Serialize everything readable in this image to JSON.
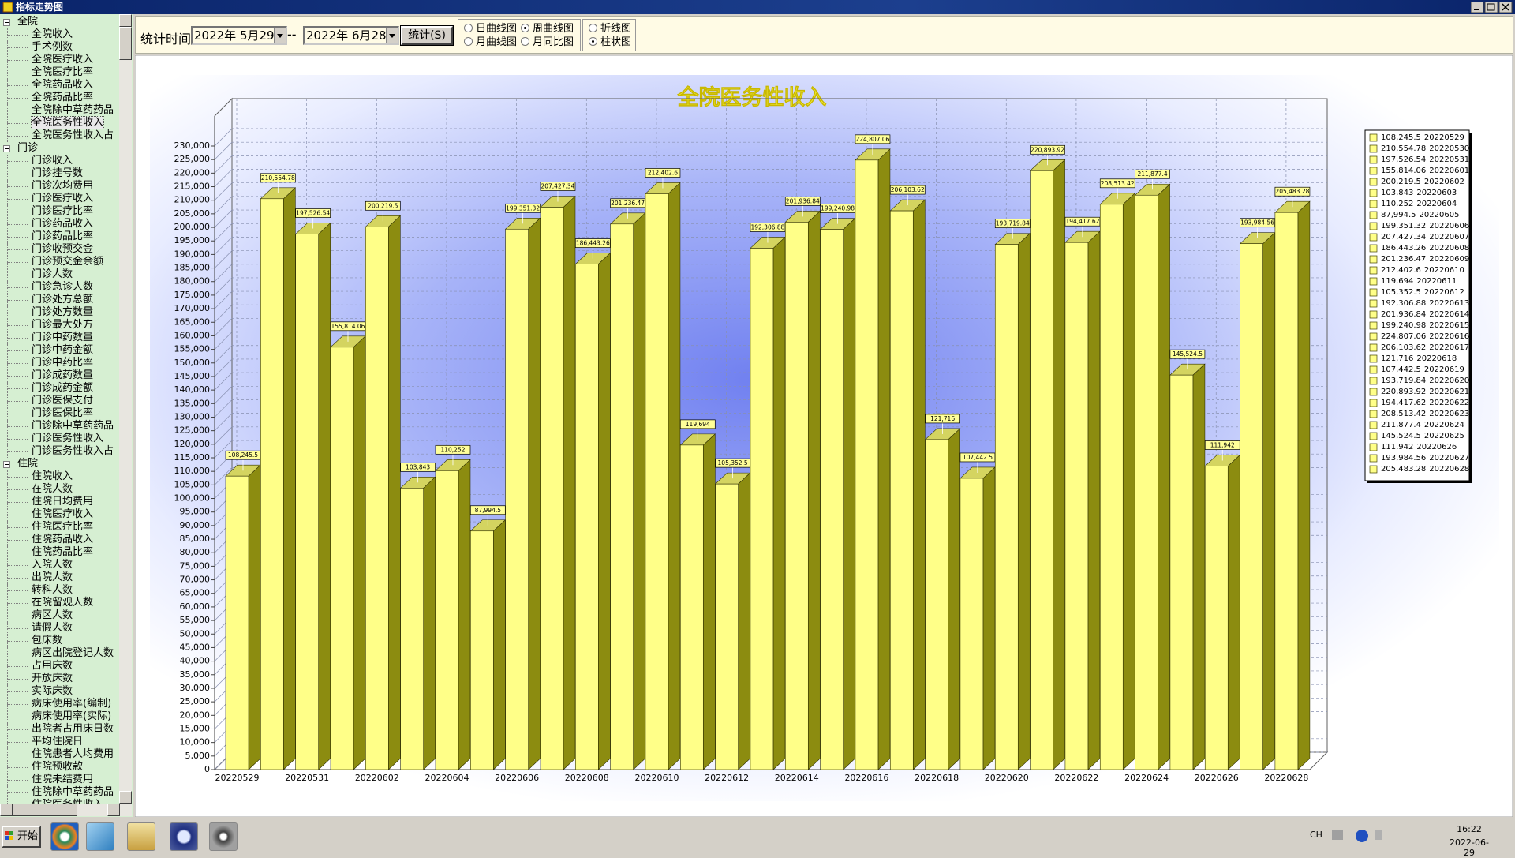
{
  "window": {
    "title": "指标走势图"
  },
  "sidebar": {
    "groups": [
      {
        "label": "全院",
        "selected_index": 7,
        "items": [
          "全院收入",
          "手术例数",
          "全院医疗收入",
          "全院医疗比率",
          "全院药品收入",
          "全院药品比率",
          "全院除中草药药品",
          "全院医务性收入",
          "全院医务性收入占"
        ]
      },
      {
        "label": "门诊",
        "items": [
          "门诊收入",
          "门诊挂号数",
          "门诊次均费用",
          "门诊医疗收入",
          "门诊医疗比率",
          "门诊药品收入",
          "门诊药品比率",
          "门诊收预交金",
          "门诊预交金余额",
          "门诊人数",
          "门诊急诊人数",
          "门诊处方总额",
          "门诊处方数量",
          "门诊最大处方",
          "门诊中药数量",
          "门诊中药金额",
          "门诊中药比率",
          "门诊成药数量",
          "门诊成药金额",
          "门诊医保支付",
          "门诊医保比率",
          "门诊除中草药药品",
          "门诊医务性收入",
          "门诊医务性收入占"
        ]
      },
      {
        "label": "住院",
        "items": [
          "住院收入",
          "在院人数",
          "住院日均费用",
          "住院医疗收入",
          "住院医疗比率",
          "住院药品收入",
          "住院药品比率",
          "入院人数",
          "出院人数",
          "转科人数",
          "在院留观人数",
          "病区人数",
          "请假人数",
          "包床数",
          "病区出院登记人数",
          "占用床数",
          "开放床数",
          "实际床数",
          "病床使用率(编制)",
          "病床使用率(实际)",
          "出院者占用床日数",
          "平均住院日",
          "住院患者人均费用",
          "住院预收款",
          "住院未结费用",
          "住院除中草药药品",
          "住院医务性收入"
        ]
      }
    ]
  },
  "toolbar": {
    "time_label": "统计时间",
    "start_date": "2022年 5月29",
    "separator": "--",
    "end_date": "2022年 6月28",
    "button": "统计(S)",
    "period_options": [
      {
        "label": "日曲线图",
        "checked": false
      },
      {
        "label": "周曲线图",
        "checked": true
      },
      {
        "label": "月曲线图",
        "checked": false
      },
      {
        "label": "月同比图",
        "checked": false
      }
    ],
    "chart_options": [
      {
        "label": "折线图",
        "checked": false
      },
      {
        "label": "柱状图",
        "checked": true
      }
    ]
  },
  "chart_data": {
    "type": "bar",
    "title": "全院医务性收入",
    "color": "#ffff88",
    "grid": true,
    "legend": "right",
    "categories": [
      "20220529",
      "20220530",
      "20220531",
      "20220601",
      "20220602",
      "20220603",
      "20220604",
      "20220605",
      "20220606",
      "20220607",
      "20220608",
      "20220609",
      "20220610",
      "20220611",
      "20220612",
      "20220613",
      "20220614",
      "20220615",
      "20220616",
      "20220617",
      "20220618",
      "20220619",
      "20220620",
      "20220621",
      "20220622",
      "20220623",
      "20220624",
      "20220625",
      "20220626",
      "20220627",
      "20220628"
    ],
    "values": [
      108245.5,
      210554.78,
      197526.54,
      155814.06,
      200219.5,
      103843,
      110252,
      87994.5,
      199351.32,
      207427.34,
      186443.26,
      201236.47,
      212402.6,
      119694,
      105352.5,
      192306.88,
      201936.84,
      199240.98,
      224807.06,
      206103.62,
      121716,
      107442.5,
      193719.84,
      220893.92,
      194417.62,
      208513.42,
      211877.4,
      145524.5,
      111942,
      193984.56,
      205483.28
    ],
    "value_labels": [
      "108,245.5",
      "210,554.78",
      "197,526.54",
      "155,814.06",
      "200,219.5",
      "103,843",
      "110,252",
      "87,994.5",
      "199,351.32",
      "207,427.34",
      "186,443.26",
      "201,236.47",
      "212,402.6",
      "119,694",
      "105,352.5",
      "192,306.88",
      "201,936.84",
      "199,240.98",
      "224,807.06",
      "206,103.62",
      "121,716",
      "107,442.5",
      "193,719.84",
      "220,893.92",
      "194,417.62",
      "208,513.42",
      "211,877.4",
      "145,524.5",
      "111,942",
      "193,984.56",
      "205,483.28"
    ],
    "ylim": [
      0,
      230000
    ],
    "yticks": [
      0,
      {
        "value": 5000,
        "label": "5,000"
      },
      {
        "value": 10000,
        "label": "10,000"
      },
      {
        "value": 15000,
        "label": "15,000"
      },
      {
        "value": 20000,
        "label": "20,000"
      },
      {
        "value": 25000,
        "label": "25,000"
      },
      {
        "value": 30000,
        "label": "30,000"
      },
      {
        "value": 35000,
        "label": "35,000"
      },
      {
        "value": 40000,
        "label": "40,000"
      },
      {
        "value": 45000,
        "label": "45,000"
      },
      {
        "value": 50000,
        "label": "50,000"
      },
      {
        "value": 55000,
        "label": "55,000"
      },
      {
        "value": 60000,
        "label": "60,000"
      },
      {
        "value": 65000,
        "label": "65,000"
      },
      {
        "value": 70000,
        "label": "70,000"
      },
      {
        "value": 75000,
        "label": "75,000"
      },
      {
        "value": 80000,
        "label": "80,000"
      },
      {
        "value": 85000,
        "label": "85,000"
      },
      {
        "value": 90000,
        "label": "90,000"
      },
      {
        "value": 95000,
        "label": "95,000"
      },
      {
        "value": 100000,
        "label": "100,000"
      },
      {
        "value": 105000,
        "label": "105,000"
      },
      {
        "value": 110000,
        "label": "110,000"
      },
      {
        "value": 115000,
        "label": "115,000"
      },
      {
        "value": 120000,
        "label": "120,000"
      },
      {
        "value": 125000,
        "label": "125,000"
      },
      {
        "value": 130000,
        "label": "130,000"
      },
      {
        "value": 135000,
        "label": "135,000"
      },
      {
        "value": 140000,
        "label": "140,000"
      },
      {
        "value": 145000,
        "label": "145,000"
      },
      {
        "value": 150000,
        "label": "150,000"
      },
      {
        "value": 155000,
        "label": "155,000"
      },
      {
        "value": 160000,
        "label": "160,000"
      },
      {
        "value": 165000,
        "label": "165,000"
      },
      {
        "value": 170000,
        "label": "170,000"
      },
      {
        "value": 175000,
        "label": "175,000"
      },
      {
        "value": 180000,
        "label": "180,000"
      },
      {
        "value": 185000,
        "label": "185,000"
      },
      {
        "value": 190000,
        "label": "190,000"
      },
      {
        "value": 195000,
        "label": "195,000"
      },
      {
        "value": 200000,
        "label": "200,000"
      },
      {
        "value": 205000,
        "label": "205,000"
      },
      {
        "value": 210000,
        "label": "210,000"
      },
      {
        "value": 215000,
        "label": "215,000"
      },
      {
        "value": 220000,
        "label": "220,000"
      },
      {
        "value": 225000,
        "label": "225,000"
      },
      {
        "value": 230000,
        "label": "230,000"
      }
    ]
  },
  "taskbar": {
    "start": "开始",
    "language": "CH",
    "time": "16:22",
    "date": "2022-06-29"
  }
}
